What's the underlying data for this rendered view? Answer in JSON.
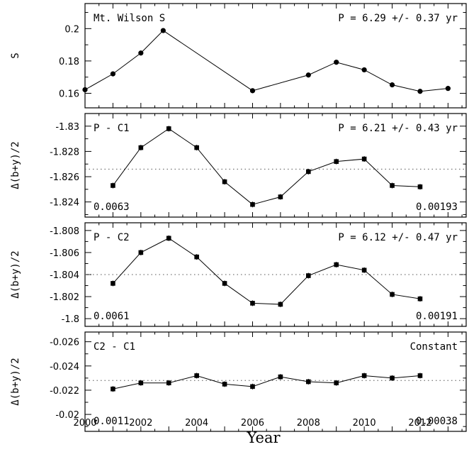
{
  "chart_data": [
    {
      "type": "scatter",
      "ylabel": "S",
      "ylim": [
        0.151,
        0.2155
      ],
      "yticks": [
        0.16,
        0.18,
        0.2
      ],
      "yticklabels": [
        "0.16",
        "0.18",
        "0.2"
      ],
      "annotations": {
        "top_left": "Mt. Wilson S",
        "top_right": "P = 6.29 +/- 0.37 yr",
        "bottom_left": "",
        "bottom_right": ""
      },
      "reference_line": null,
      "series": [
        {
          "x": [
            2000.0,
            2001.0,
            2002.0,
            2002.8,
            2006.0,
            2008.0,
            2009.0,
            2010.0,
            2011.0,
            2012.0,
            2013.0
          ],
          "y": [
            0.1622,
            0.172,
            0.1849,
            0.1988,
            0.1616,
            0.1713,
            0.1792,
            0.1745,
            0.1652,
            0.1612,
            0.163
          ]
        }
      ]
    },
    {
      "type": "scatter",
      "ylabel": "Δ(b+y)/2",
      "ylim": [
        -1.8228,
        -1.831
      ],
      "yticks": [
        -1.83,
        -1.828,
        -1.826,
        -1.824
      ],
      "yticklabels": [
        "-1.83",
        "-1.828",
        "-1.826",
        "-1.824"
      ],
      "annotations": {
        "top_left": "P - C1",
        "top_right": "P = 6.21 +/- 0.43 yr",
        "bottom_left": "0.0063",
        "bottom_right": "0.00193"
      },
      "reference_line": -1.8266,
      "series": [
        {
          "x": [
            2001.0,
            2002.0,
            2003.0,
            2004.0,
            2005.0,
            2006.0,
            2007.0,
            2008.0,
            2009.0,
            2010.0,
            2011.0,
            2012.0
          ],
          "y": [
            -1.8253,
            -1.8283,
            -1.8298,
            -1.8283,
            -1.8256,
            -1.8238,
            -1.8244,
            -1.8264,
            -1.8272,
            -1.8274,
            -1.8253,
            -1.8252
          ]
        }
      ]
    },
    {
      "type": "scatter",
      "ylabel": "Δ(b+y)/2",
      "ylim": [
        -1.7993,
        -1.8087
      ],
      "yticks": [
        -1.808,
        -1.806,
        -1.804,
        -1.802,
        -1.8
      ],
      "yticklabels": [
        "-1.808",
        "-1.806",
        "-1.804",
        "-1.802",
        "-1.8"
      ],
      "annotations": {
        "top_left": "P - C2",
        "top_right": "P = 6.12 +/- 0.47 yr",
        "bottom_left": "0.0061",
        "bottom_right": "0.00191"
      },
      "reference_line": -1.804,
      "series": [
        {
          "x": [
            2001.0,
            2002.0,
            2003.0,
            2004.0,
            2005.0,
            2006.0,
            2007.0,
            2008.0,
            2009.0,
            2010.0,
            2011.0,
            2012.0
          ],
          "y": [
            -1.8032,
            -1.806,
            -1.8073,
            -1.8056,
            -1.8032,
            -1.8014,
            -1.8013,
            -1.8039,
            -1.8049,
            -1.8044,
            -1.8022,
            -1.8018
          ]
        }
      ]
    },
    {
      "type": "scatter",
      "ylabel": "Δ(b+y)/2",
      "ylim": [
        -0.0186,
        -0.0268
      ],
      "yticks": [
        -0.026,
        -0.024,
        -0.022,
        -0.02
      ],
      "yticklabels": [
        "-0.026",
        "-0.024",
        "-0.022",
        "-0.02"
      ],
      "annotations": {
        "top_left": "C2 - C1",
        "top_right": "Constant",
        "bottom_left": "0.0011",
        "bottom_right": "0.00038"
      },
      "reference_line": -0.0228,
      "series": [
        {
          "x": [
            2001.0,
            2002.0,
            2003.0,
            2004.0,
            2005.0,
            2006.0,
            2007.0,
            2008.0,
            2009.0,
            2010.0,
            2011.0,
            2012.0
          ],
          "y": [
            -0.0221,
            -0.0226,
            -0.0226,
            -0.0232,
            -0.0225,
            -0.0223,
            -0.0231,
            -0.0227,
            -0.0226,
            -0.0232,
            -0.023,
            -0.0232
          ]
        }
      ]
    }
  ],
  "x_axis": {
    "label": "Year",
    "xlim": [
      2000.0,
      2013.65
    ],
    "ticks": [
      2000,
      2002,
      2004,
      2006,
      2008,
      2010,
      2012
    ],
    "ticklabels": [
      "2000",
      "2002",
      "2004",
      "2006",
      "2008",
      "2010",
      "2012"
    ]
  }
}
